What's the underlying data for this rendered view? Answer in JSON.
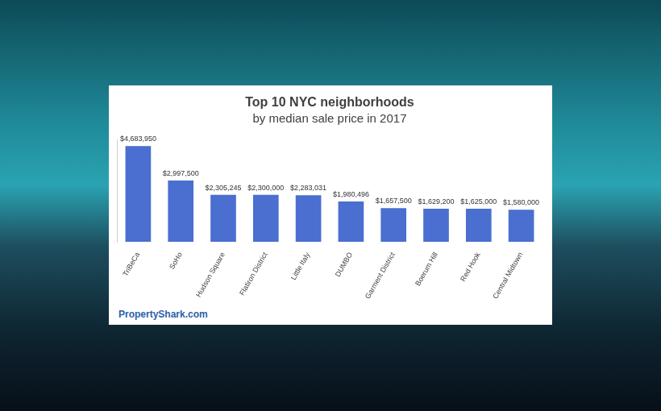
{
  "chart_data": {
    "type": "bar",
    "title": "Top 10 NYC neighborhoods",
    "subtitle": "by median sale price in 2017",
    "categories": [
      "TriBeCa",
      "SoHo",
      "Hudson Square",
      "Flatiron District",
      "Little Italy",
      "DUMBO",
      "Garment District",
      "Boerum Hill",
      "Red Hook",
      "Central Midtown"
    ],
    "values": [
      4683950,
      2997500,
      2305245,
      2300000,
      2283031,
      1980496,
      1657500,
      1629200,
      1625000,
      1580000
    ],
    "value_labels": [
      "$4,683,950",
      "$2,997,500",
      "$2,305,245",
      "$2,300,000",
      "$2,283,031",
      "$1,980,496",
      "$1,657,500",
      "$1,629,200",
      "$1,625,000",
      "$1,580,000"
    ],
    "color": "#4a6fd0",
    "ylim": [
      0,
      5000000
    ],
    "grid": false,
    "data_labels": true,
    "tick_labels": "x",
    "annotations": [
      "PropertyShark.com"
    ]
  }
}
